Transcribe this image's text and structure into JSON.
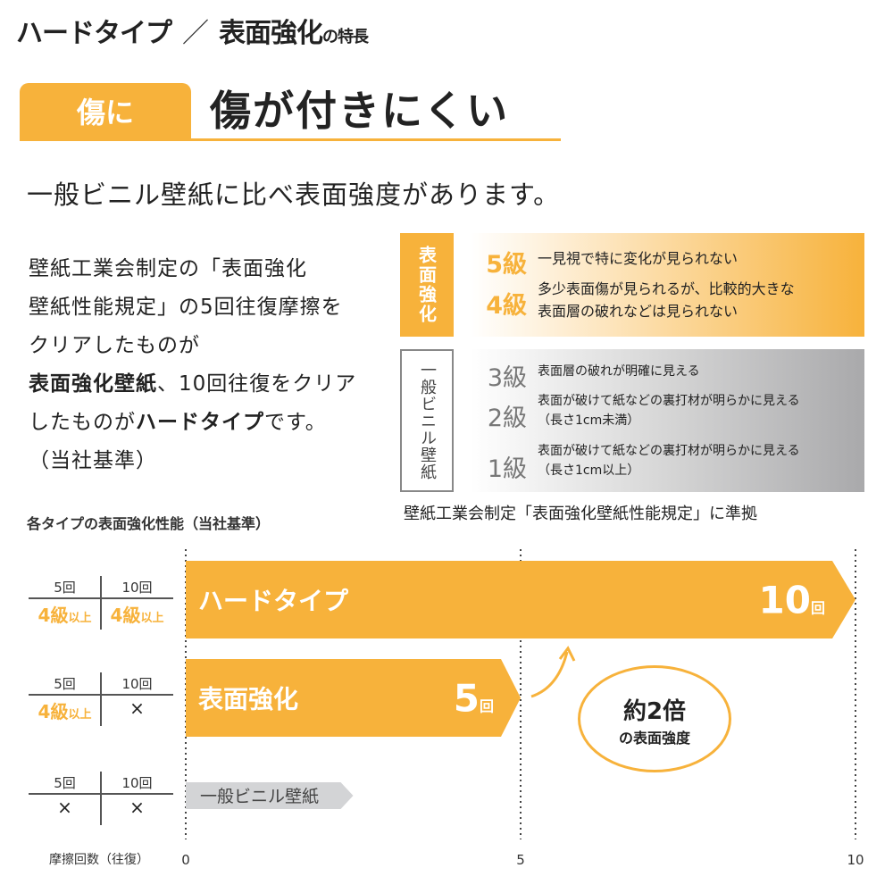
{
  "title": {
    "part1": "ハードタイプ",
    "slash": "／",
    "part2": "表面強化",
    "suffix": "の特長"
  },
  "badge": "傷に",
  "headline": "傷が付きにくい",
  "lead": "一般ビニル壁紙に比べ表面強度があります。",
  "body": {
    "line1": "壁紙工業会制定の「表面強化",
    "line2": "壁紙性能規定」の5回往復摩擦を",
    "line3": "クリアしたものが",
    "line4_bold": "表面強化壁紙",
    "line4_rest": "、10回往復をクリア",
    "line5_pre": "したものが",
    "line5_bold": "ハードタイプ",
    "line5_post": "です。",
    "line6": "（当社基準）"
  },
  "standard": {
    "top_label": "表面強化",
    "bottom_label": "一般ビニル壁紙",
    "grades": [
      {
        "grade": "5級",
        "desc1": "一見視で特に変化が見られない",
        "desc2": ""
      },
      {
        "grade": "4級",
        "desc1": "多少表面傷が見られるが、比較的大きな",
        "desc2": "表面層の破れなどは見られない"
      },
      {
        "grade": "3級",
        "desc1": "表面層の破れが明確に見える",
        "desc2": ""
      },
      {
        "grade": "2級",
        "desc1": "表面が破けて紙などの裏打材が明らかに見える",
        "desc2": "（長さ1cm未満）"
      },
      {
        "grade": "1級",
        "desc1": "表面が破けて紙などの裏打材が明らかに見える",
        "desc2": "（長さ1cm以上）"
      }
    ],
    "note": "壁紙工業会制定「表面強化壁紙性能規定」に準拠",
    "colors": {
      "accent": "#f7b23b",
      "grey": "#a9a9ab"
    }
  },
  "chart_data": {
    "type": "bar",
    "orientation": "horizontal",
    "title": "各タイプの表面強化性能（当社基準）",
    "xlabel": "摩擦回数（往復）",
    "xlim": [
      0,
      10
    ],
    "xticks": [
      "0",
      "5",
      "10"
    ],
    "grid": "dotted vertical at 0, 5, 10",
    "categories": [
      "ハードタイプ",
      "表面強化",
      "一般ビニル壁紙"
    ],
    "values": [
      10,
      5,
      2.5
    ],
    "data_labels": [
      {
        "num": "10",
        "unit": "回"
      },
      {
        "num": "5",
        "unit": "回"
      },
      null
    ],
    "colors": [
      "#f7b23b",
      "#f7b23b",
      "#d3d4d6"
    ],
    "tables": [
      {
        "h1": "5回",
        "h2": "10回",
        "v1": "4級",
        "v1s": "以上",
        "v2": "4級",
        "v2s": "以上"
      },
      {
        "h1": "5回",
        "h2": "10回",
        "v1": "4級",
        "v1s": "以上",
        "v2": "×",
        "v2s": ""
      },
      {
        "h1": "5回",
        "h2": "10回",
        "v1": "×",
        "v1s": "",
        "v2": "×",
        "v2s": ""
      }
    ],
    "annotation": {
      "line1": "約2倍",
      "line2": "の表面強度"
    }
  }
}
